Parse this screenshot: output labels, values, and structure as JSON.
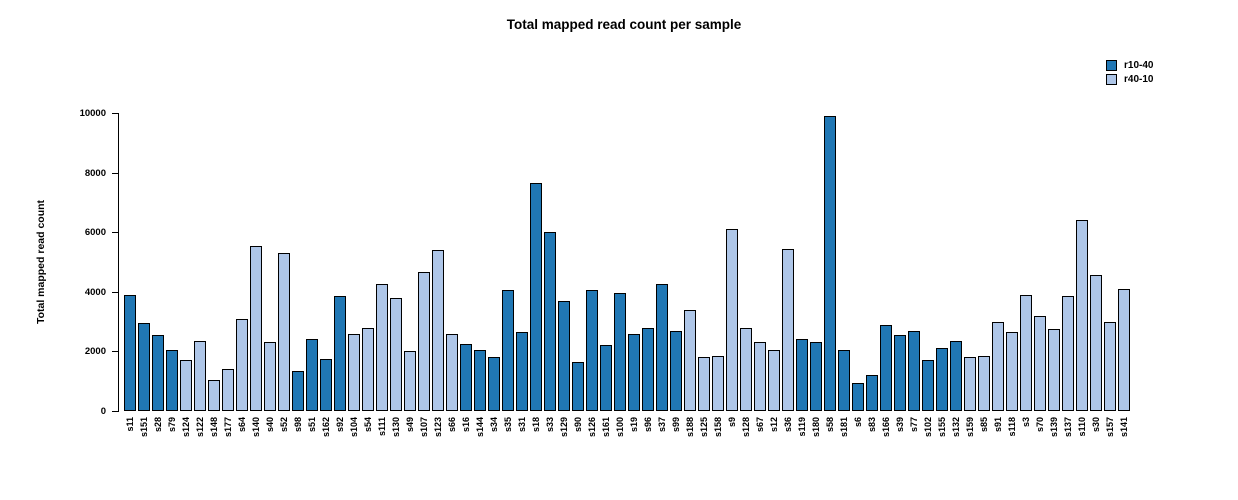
{
  "chart_data": {
    "type": "bar",
    "title": "Total mapped read count per sample",
    "xlabel": "",
    "ylabel": "Total mapped read count",
    "ylim": [
      0,
      10000
    ],
    "yticks": [
      0,
      2000,
      4000,
      6000,
      8000,
      10000
    ],
    "grid": "off",
    "legend_position": "top-right",
    "legend": [
      {
        "name": "r10-40",
        "color": "#2077b4"
      },
      {
        "name": "r40-10",
        "color": "#aec6e8"
      }
    ],
    "categories": [
      "s11",
      "s151",
      "s28",
      "s79",
      "s124",
      "s122",
      "s148",
      "s177",
      "s64",
      "s140",
      "s40",
      "s52",
      "s98",
      "s51",
      "s162",
      "s92",
      "s104",
      "s54",
      "s111",
      "s130",
      "s49",
      "s107",
      "s123",
      "s66",
      "s16",
      "s144",
      "s34",
      "s35",
      "s31",
      "s18",
      "s33",
      "s129",
      "s90",
      "s126",
      "s161",
      "s100",
      "s19",
      "s96",
      "s37",
      "s99",
      "s188",
      "s125",
      "s158",
      "s9",
      "s128",
      "s67",
      "s12",
      "s36",
      "s119",
      "s180",
      "s58",
      "s181",
      "s6",
      "s83",
      "s166",
      "s39",
      "s77",
      "s102",
      "s155",
      "s132",
      "s159",
      "s85",
      "s91",
      "s118",
      "s3",
      "s70",
      "s139",
      "s137",
      "s110",
      "s30",
      "s157",
      "s141"
    ],
    "values": [
      3900,
      2950,
      2550,
      2050,
      1700,
      2350,
      1050,
      1400,
      3100,
      5550,
      2300,
      5300,
      1350,
      2400,
      1750,
      3850,
      2600,
      2800,
      4250,
      3800,
      2000,
      4650,
      5400,
      2600,
      2250,
      2050,
      1800,
      4050,
      2650,
      7650,
      6000,
      3700,
      1650,
      4050,
      2200,
      3950,
      2600,
      2800,
      4250,
      2700,
      3400,
      1800,
      1850,
      6100,
      2800,
      2300,
      2050,
      5450,
      2400,
      2300,
      9900,
      2050,
      950,
      1200,
      2900,
      2550,
      2700,
      1700,
      2100,
      2350,
      1800,
      1850,
      3000,
      2650,
      3900,
      3200,
      2750,
      3850,
      6400,
      4550,
      3000,
      4100
    ],
    "groups": [
      "r10-40",
      "r10-40",
      "r10-40",
      "r10-40",
      "r40-10",
      "r40-10",
      "r40-10",
      "r40-10",
      "r40-10",
      "r40-10",
      "r40-10",
      "r40-10",
      "r10-40",
      "r10-40",
      "r10-40",
      "r10-40",
      "r40-10",
      "r40-10",
      "r40-10",
      "r40-10",
      "r40-10",
      "r40-10",
      "r40-10",
      "r40-10",
      "r10-40",
      "r10-40",
      "r10-40",
      "r10-40",
      "r10-40",
      "r10-40",
      "r10-40",
      "r10-40",
      "r10-40",
      "r10-40",
      "r10-40",
      "r10-40",
      "r10-40",
      "r10-40",
      "r10-40",
      "r10-40",
      "r40-10",
      "r40-10",
      "r40-10",
      "r40-10",
      "r40-10",
      "r40-10",
      "r40-10",
      "r40-10",
      "r10-40",
      "r10-40",
      "r10-40",
      "r10-40",
      "r10-40",
      "r10-40",
      "r10-40",
      "r10-40",
      "r10-40",
      "r10-40",
      "r10-40",
      "r10-40",
      "r40-10",
      "r40-10",
      "r40-10",
      "r40-10",
      "r40-10",
      "r40-10",
      "r40-10",
      "r40-10",
      "r40-10",
      "r40-10",
      "r40-10",
      "r40-10"
    ]
  }
}
